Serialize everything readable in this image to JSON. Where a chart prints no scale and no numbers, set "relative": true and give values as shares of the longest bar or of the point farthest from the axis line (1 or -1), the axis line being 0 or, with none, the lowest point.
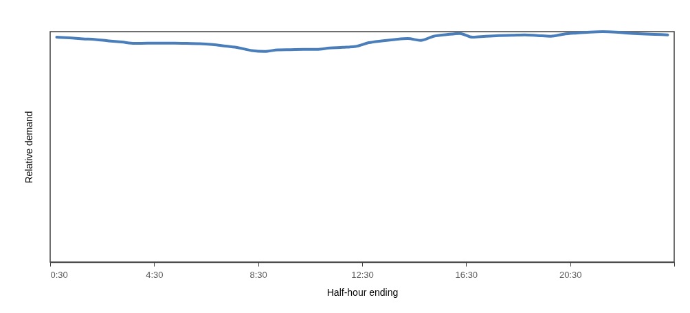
{
  "chart_data": {
    "type": "line",
    "xlabel": "Half-hour ending",
    "ylabel": "Relative demand",
    "relative": true,
    "grid": false,
    "legend": false,
    "marker": "none",
    "line_style": "solid",
    "xlim": [
      0.5,
      24.5
    ],
    "xticks": [
      {
        "value": 0.5,
        "label": "0:30"
      },
      {
        "value": 4.5,
        "label": "4:30"
      },
      {
        "value": 8.5,
        "label": "8:30"
      },
      {
        "value": 12.5,
        "label": "12:30"
      },
      {
        "value": 16.5,
        "label": "16:30"
      },
      {
        "value": 20.5,
        "label": "20:30"
      },
      {
        "value": 24.5,
        "label": null
      }
    ],
    "x": [
      0.75,
      1.25,
      1.75,
      2.25,
      2.75,
      3.25,
      3.75,
      4.25,
      4.75,
      5.25,
      5.75,
      6.25,
      6.75,
      7.25,
      7.75,
      8.25,
      8.75,
      9.25,
      9.75,
      10.25,
      10.75,
      11.25,
      11.75,
      12.25,
      12.75,
      13.25,
      13.75,
      14.25,
      14.75,
      15.25,
      15.75,
      16.25,
      16.75,
      17.25,
      17.75,
      18.25,
      18.75,
      19.25,
      19.75,
      20.25,
      20.75,
      21.25,
      21.75,
      22.25,
      22.75,
      23.25,
      23.75,
      24.25
    ],
    "series": [
      {
        "color": "#4a7ebb",
        "values": [
          0.976,
          0.973,
          0.969,
          0.966,
          0.96,
          0.955,
          0.949,
          0.95,
          0.95,
          0.95,
          0.949,
          0.948,
          0.944,
          0.937,
          0.93,
          0.918,
          0.914,
          0.921,
          0.922,
          0.923,
          0.923,
          0.929,
          0.932,
          0.936,
          0.952,
          0.96,
          0.966,
          0.97,
          0.962,
          0.98,
          0.987,
          0.992,
          0.976,
          0.98,
          0.983,
          0.984,
          0.986,
          0.983,
          0.98,
          0.989,
          0.994,
          0.998,
          1,
          0.998,
          0.993,
          0.99,
          0.988,
          0.986
        ]
      }
    ]
  }
}
